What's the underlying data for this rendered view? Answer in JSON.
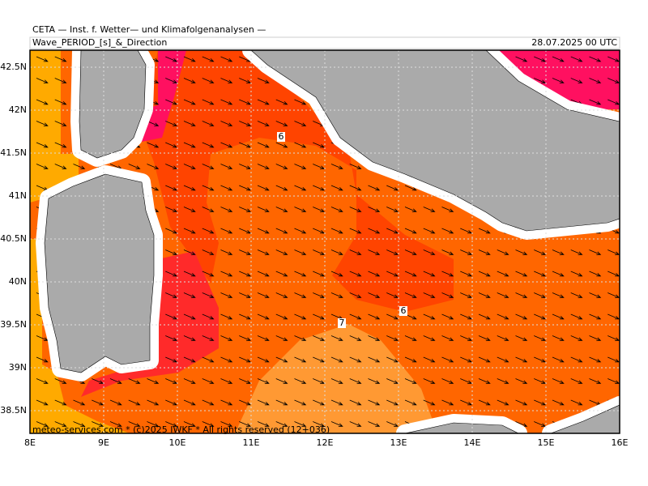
{
  "header": {
    "institute": "CETA — Inst. f. Wetter— und Klimafolgenanalysen —",
    "product": "Wave_PERIOD_[s]_&_Direction",
    "valid_time": "28.07.2025 00 UTC"
  },
  "map": {
    "longitude_labels": [
      "8E",
      "9E",
      "10E",
      "11E",
      "12E",
      "13E",
      "14E",
      "15E",
      "16E"
    ],
    "latitude_labels": [
      "42.5N",
      "42N",
      "41.5N",
      "41N",
      "40.5N",
      "40N",
      "39.5N",
      "39N",
      "38.5N"
    ],
    "contour_labels": [
      "6",
      "6",
      "7"
    ],
    "footer": "meteo-services.com * (c)2025 IWKF * All rights reserved (12+036)"
  }
}
